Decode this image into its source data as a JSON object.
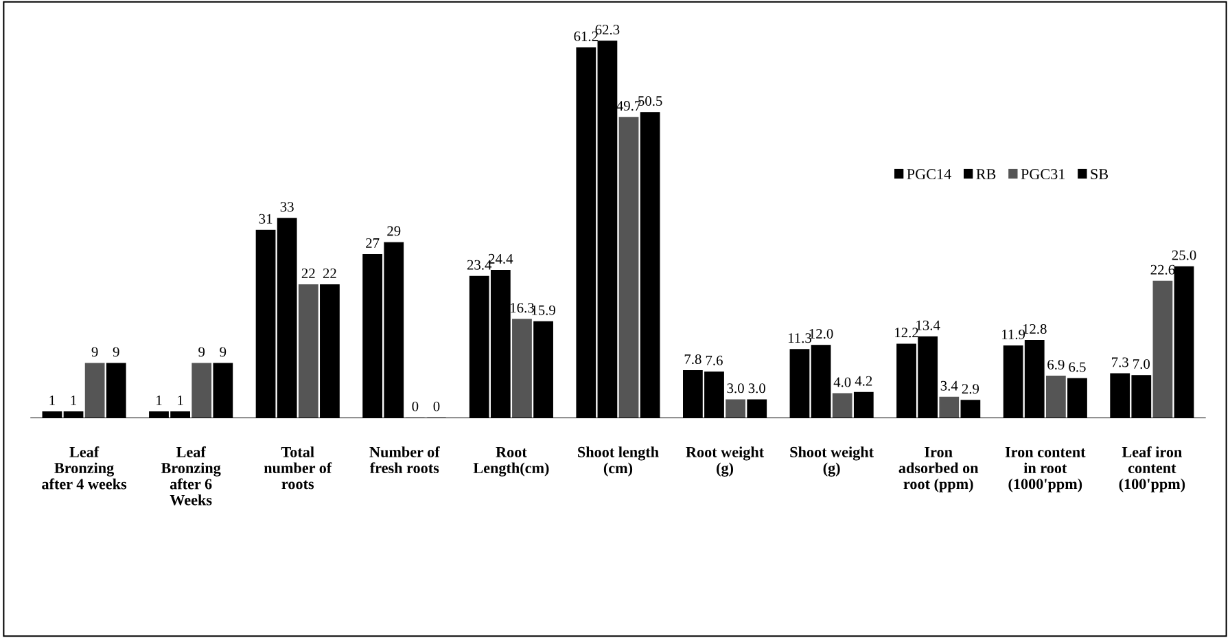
{
  "chart_data": {
    "type": "bar",
    "categories": [
      "Leaf\nBronzing\nafter 4 weeks",
      "Leaf\nBronzing\nafter 6\nWeeks",
      "Total\nnumber of\nroots",
      "Number of\nfresh roots",
      "Root\nLength(cm)",
      "Shoot length\n(cm)",
      "Root weight\n(g)",
      "Shoot weight\n(g)",
      "Iron\nadsorbed on\nroot (ppm)",
      "Iron content\nin root\n(1000'ppm)",
      "Leaf iron\ncontent\n(100'ppm)"
    ],
    "series": [
      {
        "name": "PGC14",
        "color": "#000000",
        "values": [
          1,
          1,
          31,
          27,
          23.4,
          61.2,
          7.8,
          11.3,
          12.2,
          11.9,
          7.3
        ],
        "value_labels": [
          "1",
          "1",
          "31",
          "27",
          "23.4",
          "61.2",
          "7.8",
          "11.3",
          "12.2",
          "11.9",
          "7.3"
        ]
      },
      {
        "name": "RB",
        "color": "#000000",
        "values": [
          1,
          1,
          33,
          29,
          24.4,
          62.3,
          7.6,
          12.0,
          13.4,
          12.8,
          7.0
        ],
        "value_labels": [
          "1",
          "1",
          "33",
          "29",
          "24.4",
          "62.3",
          "7.6",
          "12.0",
          "13.4",
          "12.8",
          "7.0"
        ]
      },
      {
        "name": "PGC31",
        "color": "#555555",
        "values": [
          9,
          9,
          22,
          0,
          16.3,
          49.7,
          3.0,
          4.0,
          3.4,
          6.9,
          22.6
        ],
        "value_labels": [
          "9",
          "9",
          "22",
          "0",
          "16.3",
          "49.7",
          "3.0",
          "4.0",
          "3.4",
          "6.9",
          "22.6"
        ]
      },
      {
        "name": "SB",
        "color": "#000000",
        "values": [
          9,
          9,
          22,
          0,
          15.9,
          50.5,
          3.0,
          4.2,
          2.9,
          6.5,
          25.0
        ],
        "value_labels": [
          "9",
          "9",
          "22",
          "0",
          "15.9",
          "50.5",
          "3.0",
          "4.2",
          "2.9",
          "6.5",
          "25.0"
        ]
      }
    ],
    "legend": "top right",
    "grid": false
  }
}
